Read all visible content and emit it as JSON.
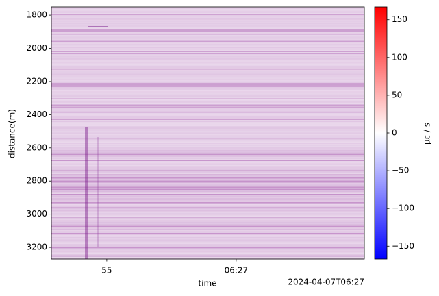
{
  "chart_data": {
    "type": "heatmap",
    "ylabel": "distance(m)",
    "xlabel": "time",
    "ylim": [
      1750,
      3270
    ],
    "y_inverted": true,
    "yticks": [
      1800,
      2000,
      2200,
      2400,
      2600,
      2800,
      3000,
      3200
    ],
    "xlim": [
      52.86,
      64.95
    ],
    "xticks": [
      {
        "value": 55,
        "label": "55"
      },
      {
        "value": 60,
        "label": "06:27"
      }
    ],
    "x_offset_label": "2024-04-07T06:27",
    "colorbar": {
      "label": "με / s",
      "clim": [
        -167,
        167
      ],
      "ticks": [
        {
          "value": -150,
          "label": "−150"
        },
        {
          "value": -100,
          "label": "−100"
        },
        {
          "value": -50,
          "label": "−50"
        },
        0,
        50,
        100,
        150
      ],
      "colormap": [
        "#0000ff",
        "#ffffff",
        "#ff0000"
      ]
    }
  }
}
